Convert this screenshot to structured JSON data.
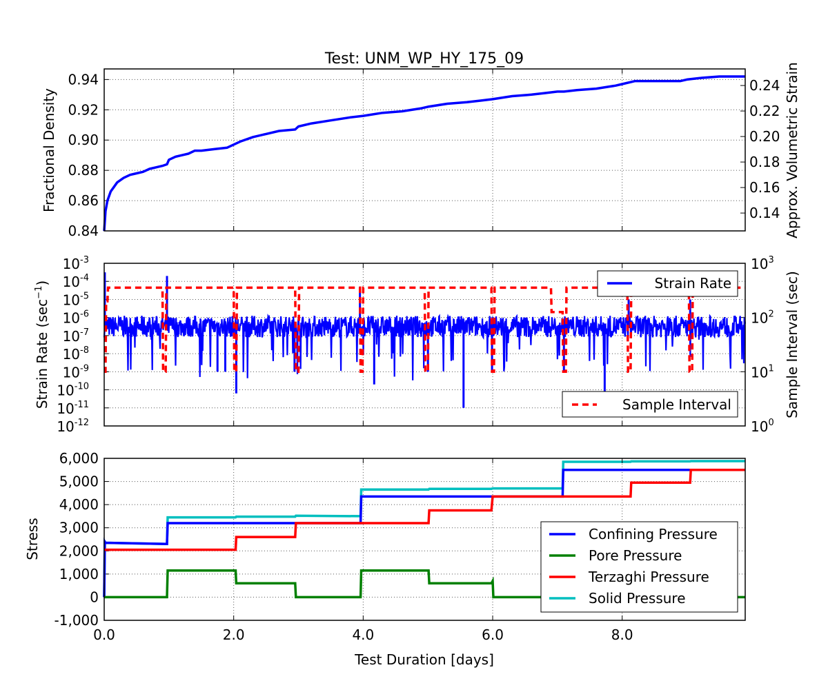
{
  "figure": {
    "title": "Test: UNM_WP_HY_175_09",
    "xlabel": "Test Duration [days]",
    "xticks": [
      "0.0",
      "2.0",
      "4.0",
      "6.0",
      "8.0"
    ],
    "xlim": [
      0,
      9.9
    ]
  },
  "chart_data": [
    {
      "type": "line",
      "panel": "density",
      "ylabel": "Fractional Density",
      "ylabel_right": "Approx. Volumetric Strain",
      "ylim": [
        0.84,
        0.947
      ],
      "yticks": [
        "0.84",
        "0.86",
        "0.88",
        "0.90",
        "0.92",
        "0.94"
      ],
      "ylim_right": [
        0.126,
        0.253
      ],
      "yticks_right": [
        "0.14",
        "0.16",
        "0.18",
        "0.20",
        "0.22",
        "0.24"
      ],
      "grid": true,
      "series": [
        {
          "color": "#0000ff",
          "x": [
            0,
            0.02,
            0.05,
            0.1,
            0.15,
            0.2,
            0.3,
            0.4,
            0.5,
            0.6,
            0.7,
            0.8,
            0.9,
            0.97,
            1.0,
            1.1,
            1.2,
            1.3,
            1.4,
            1.5,
            1.7,
            1.9,
            2.0,
            2.1,
            2.3,
            2.5,
            2.7,
            2.95,
            3.0,
            3.2,
            3.5,
            3.8,
            4.0,
            4.3,
            4.6,
            4.9,
            5.0,
            5.3,
            5.6,
            5.8,
            6.0,
            6.3,
            6.6,
            6.8,
            7.0,
            7.1,
            7.3,
            7.6,
            7.9,
            8.0,
            8.2,
            8.4,
            8.6,
            8.9,
            9.0,
            9.2,
            9.5,
            9.9
          ],
          "y": [
            0.84,
            0.853,
            0.86,
            0.866,
            0.869,
            0.872,
            0.875,
            0.877,
            0.878,
            0.879,
            0.881,
            0.882,
            0.883,
            0.884,
            0.887,
            0.889,
            0.89,
            0.891,
            0.893,
            0.893,
            0.894,
            0.895,
            0.897,
            0.899,
            0.902,
            0.904,
            0.906,
            0.907,
            0.909,
            0.911,
            0.913,
            0.915,
            0.916,
            0.918,
            0.919,
            0.921,
            0.922,
            0.924,
            0.925,
            0.926,
            0.927,
            0.929,
            0.93,
            0.931,
            0.932,
            0.932,
            0.933,
            0.934,
            0.936,
            0.937,
            0.939,
            0.939,
            0.939,
            0.939,
            0.94,
            0.941,
            0.942,
            0.942
          ]
        }
      ]
    },
    {
      "type": "line",
      "panel": "rate",
      "ylabel": "Strain Rate (sec",
      "ylabel_sup": "−1",
      "ylabel_close": ")",
      "ylabel_right": "Sample Interval (sec)",
      "yscale": "log",
      "ylim": [
        -12,
        -3
      ],
      "yticks_exp": [
        "-3",
        "-4",
        "-5",
        "-6",
        "-7",
        "-8",
        "-9",
        "-10",
        "-11",
        "-12"
      ],
      "ylim_right": [
        0,
        3
      ],
      "yticks_right_exp": [
        "3",
        "2",
        "1",
        "0"
      ],
      "grid": true,
      "legend_position": "top-right / bottom-right",
      "series": [
        {
          "name": "Strain Rate",
          "color": "#0000ff",
          "baseline_log": -6.5,
          "spikes": [
            {
              "x": 0.01,
              "y": -3.5
            },
            {
              "x": 0.97,
              "y": -3.7
            },
            {
              "x": 1.87,
              "y": -9
            },
            {
              "x": 2.04,
              "y": -10.2
            },
            {
              "x": 2.94,
              "y": -9
            },
            {
              "x": 3.95,
              "y": -4.3
            },
            {
              "x": 4.17,
              "y": -9.7
            },
            {
              "x": 5.0,
              "y": -9
            },
            {
              "x": 5.55,
              "y": -11
            },
            {
              "x": 5.99,
              "y": -9
            },
            {
              "x": 7.1,
              "y": -9
            },
            {
              "x": 7.73,
              "y": -10.2
            },
            {
              "x": 8.1,
              "y": -5
            },
            {
              "x": 9.05,
              "y": -5
            },
            {
              "x": 1.75,
              "y": -9
            }
          ]
        },
        {
          "name": "Sample Interval",
          "color": "#ff0000",
          "x": [
            0,
            0.02,
            0.03,
            0.05,
            0.06,
            0.9,
            0.91,
            0.95,
            0.96,
            2.0,
            2.01,
            2.04,
            2.05,
            2.95,
            2.96,
            3.0,
            3.01,
            3.95,
            3.96,
            3.99,
            4.0,
            4.95,
            4.96,
            5.0,
            5.01,
            5.98,
            5.99,
            6.02,
            6.03,
            6.13,
            6.14,
            6.9,
            6.91,
            7.08,
            7.09,
            7.13,
            7.14,
            8.08,
            8.09,
            8.13,
            8.14,
            9.03,
            9.04,
            9.08,
            9.09,
            9.9
          ],
          "y": [
            1,
            1,
            2.3,
            2.3,
            2.55,
            2.55,
            1,
            1,
            2.55,
            2.55,
            1,
            1,
            2.55,
            2.55,
            1,
            1,
            2.55,
            2.55,
            1,
            1,
            2.55,
            2.55,
            1,
            1,
            2.55,
            2.55,
            1,
            1,
            2.55,
            2.55,
            2.55,
            2.55,
            2.1,
            2.1,
            1,
            1,
            2.55,
            2.55,
            1,
            1,
            2.55,
            2.55,
            1,
            1,
            2.55,
            2.55
          ]
        }
      ]
    },
    {
      "type": "line",
      "panel": "stress",
      "ylabel": "Stress",
      "ylim": [
        -1000,
        6000
      ],
      "yticks": [
        "6,000",
        "5,000",
        "4,000",
        "3,000",
        "2,000",
        "1,000",
        "0",
        "-1,000"
      ],
      "grid": true,
      "legend_position": "lower-right",
      "series": [
        {
          "name": "Confining Pressure",
          "color": "#0000ff",
          "x": [
            0,
            0.01,
            0.02,
            0.97,
            0.98,
            3.96,
            3.97,
            7.08,
            7.09,
            9.9
          ],
          "y": [
            0,
            2400,
            2350,
            2300,
            3200,
            3200,
            4350,
            4350,
            5500,
            5500
          ]
        },
        {
          "name": "Pore Pressure",
          "color": "#008000",
          "x": [
            0,
            0.97,
            0.98,
            2.03,
            2.04,
            2.95,
            2.96,
            3.96,
            3.97,
            5.01,
            5.02,
            5.98,
            6.0,
            6.01,
            7.08,
            7.09,
            8.13,
            8.14,
            9.05,
            9.06,
            9.9
          ],
          "y": [
            0,
            0,
            1150,
            1150,
            600,
            600,
            0,
            0,
            1150,
            1150,
            600,
            600,
            700,
            0,
            0,
            1150,
            1150,
            600,
            600,
            0,
            0
          ]
        },
        {
          "name": "Terzaghi Pressure",
          "color": "#ff0000",
          "x": [
            0,
            0.97,
            0.98,
            2.03,
            2.04,
            2.95,
            2.96,
            3.96,
            3.97,
            5.01,
            5.02,
            5.98,
            6.0,
            7.08,
            7.09,
            8.13,
            8.14,
            9.05,
            9.06,
            9.9
          ],
          "y": [
            2050,
            2050,
            2050,
            2050,
            2600,
            2600,
            3200,
            3200,
            3200,
            3200,
            3750,
            3750,
            4350,
            4350,
            4350,
            4350,
            4950,
            4950,
            5500,
            5500
          ]
        },
        {
          "name": "Solid Pressure",
          "color": "#00bfbf",
          "x": [
            0,
            0.01,
            0.02,
            0.97,
            0.98,
            2.03,
            2.04,
            2.95,
            2.96,
            3.96,
            3.97,
            5.01,
            5.02,
            5.98,
            6.0,
            7.08,
            7.09,
            8.13,
            8.14,
            9.05,
            9.06,
            9.9
          ],
          "y": [
            0,
            2400,
            2350,
            2300,
            3450,
            3450,
            3480,
            3480,
            3520,
            3500,
            4650,
            4650,
            4680,
            4680,
            4700,
            4700,
            5850,
            5850,
            5870,
            5870,
            5880,
            5880
          ]
        }
      ]
    }
  ]
}
